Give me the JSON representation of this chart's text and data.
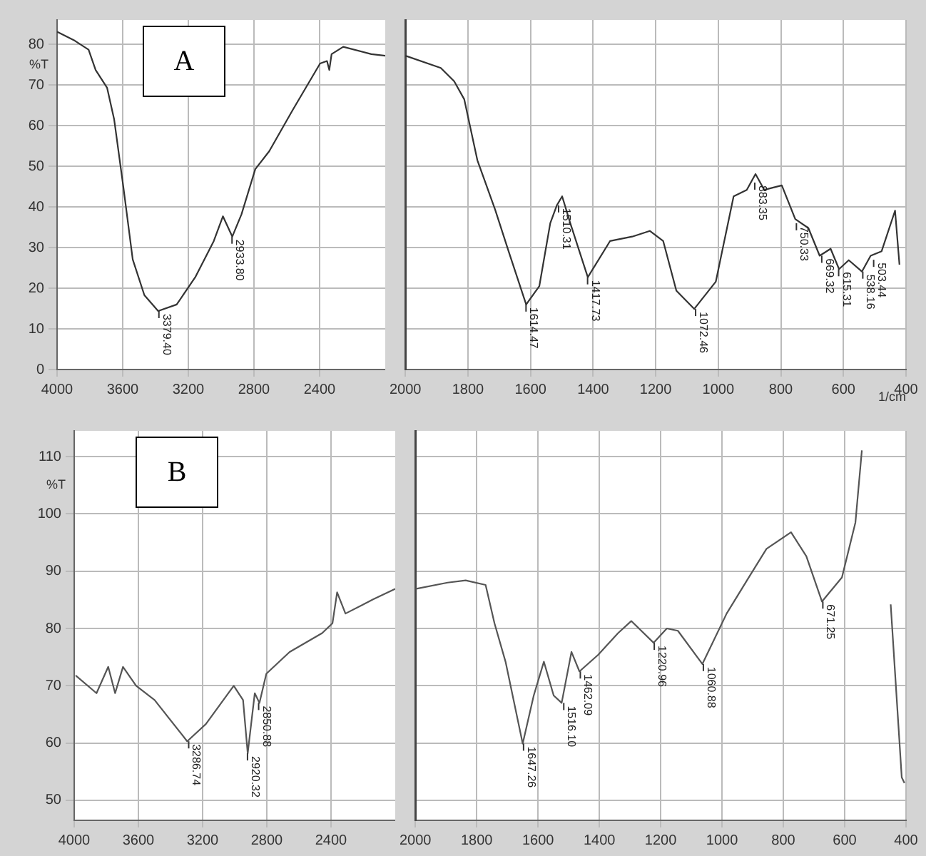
{
  "chart_data": [
    {
      "type": "line",
      "title": "A",
      "ylabel": "%T",
      "color": "#333333",
      "marker": "none",
      "grid": true,
      "x": [
        4000,
        3892,
        3808,
        3765,
        3695,
        3652,
        3596,
        3539,
        3468,
        3384,
        3271,
        3158,
        3045,
        2989,
        2932,
        2876,
        2792,
        2707,
        2566,
        2397,
        2355,
        2341,
        2327,
        2256,
        2085,
        2000
      ],
      "values": [
        83.1,
        80.9,
        78.7,
        73.7,
        69.3,
        61.5,
        44.9,
        27.1,
        18.3,
        14.4,
        16,
        22.7,
        31.6,
        37.7,
        32.7,
        38.2,
        49.3,
        53.7,
        63.7,
        75.3,
        75.9,
        73.7,
        77.6,
        79.4,
        77.6,
        77.2
      ],
      "xlim": [
        4000,
        2000
      ],
      "xticks": [
        4000,
        3600,
        3200,
        2800,
        2400
      ],
      "ylim": [
        0,
        86
      ],
      "yticks": [
        0,
        10,
        20,
        30,
        40,
        50,
        60,
        70,
        80
      ],
      "annotations": [
        {
          "text": "3379.40",
          "x": 3379.4,
          "y": 14.4
        },
        {
          "text": "2933.80",
          "x": 2933.8,
          "y": 32.7
        }
      ]
    },
    {
      "type": "line",
      "xlabel": "1/cm",
      "color": "#333333",
      "marker": "none",
      "grid": true,
      "tick_labels": "x",
      "x": [
        2000,
        1887,
        1844,
        1812,
        1770,
        1713,
        1671,
        1614,
        1572,
        1537,
        1516,
        1499,
        1473,
        1417,
        1346,
        1275,
        1219,
        1176,
        1134,
        1077,
        1008,
        951,
        909,
        881,
        853,
        797,
        754,
        712,
        676,
        641,
        614,
        583,
        541,
        513,
        478,
        435,
        421
      ],
      "values": [
        77.2,
        74.2,
        70.9,
        66.5,
        51.5,
        39.3,
        29.3,
        16,
        20.5,
        36,
        40.4,
        42.6,
        36,
        22.7,
        31.6,
        32.7,
        34.1,
        31.6,
        19.4,
        14.9,
        21.6,
        42.6,
        44.2,
        48.1,
        44.2,
        45.3,
        37,
        34.8,
        28,
        29.7,
        24.7,
        26.9,
        24.1,
        28,
        29.1,
        39.1,
        25.8
      ],
      "xlim": [
        2000,
        400
      ],
      "xticks": [
        2000,
        1800,
        1600,
        1400,
        1200,
        1000,
        800,
        600,
        400
      ],
      "ylim": [
        0,
        86
      ],
      "yticks": [
        0,
        10,
        20,
        30,
        40,
        50,
        60,
        70,
        80
      ],
      "annotations": [
        {
          "text": "1614.47",
          "x": 1614.47,
          "y": 16
        },
        {
          "text": "1510.31",
          "x": 1510.31,
          "y": 40.4
        },
        {
          "text": "1417.73",
          "x": 1417.73,
          "y": 22.7
        },
        {
          "text": "1072.46",
          "x": 1072.46,
          "y": 14.9
        },
        {
          "text": "883.35",
          "x": 883.35,
          "y": 46
        },
        {
          "text": "750.33",
          "x": 750.33,
          "y": 36
        },
        {
          "text": "669.32",
          "x": 669.32,
          "y": 28
        },
        {
          "text": "615.31",
          "x": 615.31,
          "y": 24.7
        },
        {
          "text": "538.16",
          "x": 538.16,
          "y": 24.1
        },
        {
          "text": "503.44",
          "x": 503.44,
          "y": 27
        }
      ]
    },
    {
      "type": "line",
      "title": "B",
      "ylabel": "%T",
      "color": "#555555",
      "marker": "none",
      "grid": true,
      "x": [
        3991,
        3861,
        3788,
        3745,
        3696,
        3614,
        3499,
        3296,
        3180,
        3006,
        2948,
        2919,
        2875,
        2846,
        2803,
        2658,
        2455,
        2391,
        2362,
        2310,
        2136,
        2000
      ],
      "values": [
        71.8,
        68.7,
        73.3,
        68.7,
        73.3,
        70,
        67.5,
        60.3,
        63.3,
        70,
        67.5,
        58.2,
        68.7,
        67,
        72.1,
        75.9,
        79.2,
        80.9,
        86.3,
        82.6,
        85.1,
        86.9
      ],
      "xlim": [
        4000,
        2000
      ],
      "xticks": [
        4000,
        3600,
        3200,
        2800,
        2400
      ],
      "ylim": [
        46.5,
        114.5
      ],
      "yticks": [
        50,
        60,
        70,
        80,
        90,
        100,
        110
      ],
      "annotations": [
        {
          "text": "3286.74",
          "x": 3286.74,
          "y": 60.3
        },
        {
          "text": "2920.32",
          "x": 2920.32,
          "y": 58.2
        },
        {
          "text": "2850.88",
          "x": 2850.88,
          "y": 67
        }
      ]
    },
    {
      "type": "line",
      "color": "#555555",
      "marker": "none",
      "grid": true,
      "tick_labels": "x",
      "x": [
        2000,
        1895,
        1836,
        1771,
        1742,
        1706,
        1650,
        1614,
        1581,
        1549,
        1523,
        1491,
        1465,
        1404,
        1339,
        1296,
        1223,
        1180,
        1144,
        1064,
        985,
        913,
        855,
        775,
        725,
        674,
        609,
        565,
        544,
        525,
        502,
        479,
        450,
        414,
        405
      ],
      "values": [
        86.9,
        88,
        88.4,
        87.6,
        80.9,
        74.2,
        59.9,
        68.3,
        74.2,
        68.3,
        67,
        75.9,
        72.5,
        75.4,
        79.2,
        81.3,
        77.5,
        80,
        79.6,
        73.8,
        82.6,
        88.9,
        93.9,
        96.8,
        92.6,
        84.7,
        88.9,
        98.5,
        111.1,
        null,
        null,
        null,
        84.2,
        54,
        53
      ],
      "xlim": [
        2000,
        400
      ],
      "xticks": [
        2000,
        1800,
        1600,
        1400,
        1200,
        1000,
        800,
        600,
        400
      ],
      "ylim": [
        46.5,
        114.5
      ],
      "yticks": [
        50,
        60,
        70,
        80,
        90,
        100,
        110
      ],
      "annotations": [
        {
          "text": "1647.26",
          "x": 1647.26,
          "y": 59.9
        },
        {
          "text": "1516.10",
          "x": 1516.1,
          "y": 67
        },
        {
          "text": "1462.09",
          "x": 1462.09,
          "y": 72.5
        },
        {
          "text": "1220.96",
          "x": 1220.96,
          "y": 77.5
        },
        {
          "text": "1060.88",
          "x": 1060.88,
          "y": 73.8
        },
        {
          "text": "671.25",
          "x": 671.25,
          "y": 84.7
        }
      ]
    }
  ]
}
